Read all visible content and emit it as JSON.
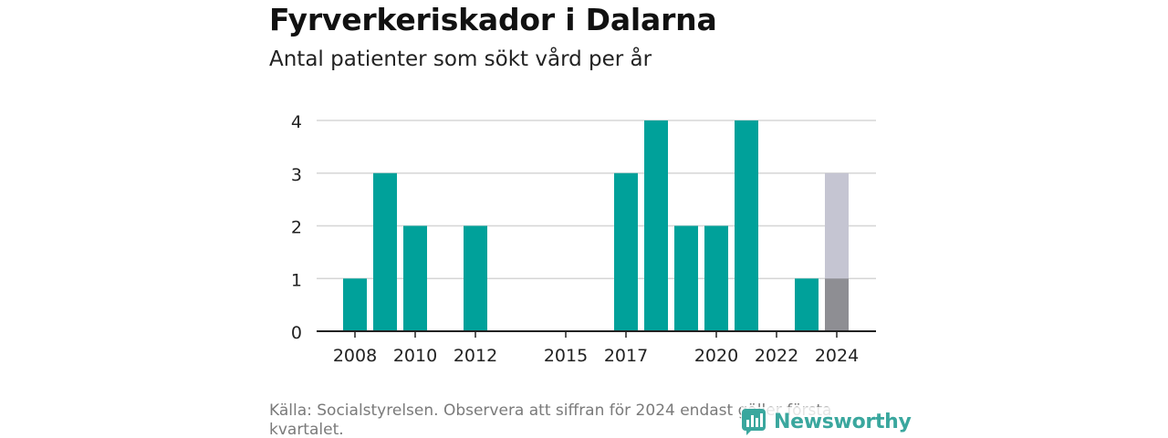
{
  "title": "Fyrverkeriskador i Dalarna",
  "subtitle": "Antal patienter som sökt vård per år",
  "footer": "Källa: Socialstyrelsen. Observera att siffran för 2024 endast gäller första kvartalet.",
  "brand": "Newsworthy",
  "colors": {
    "bar": "#00A19A",
    "highlight": "#8E8E93",
    "projection": "#C5C5D2",
    "grid": "#D6D6D6",
    "axis": "#222222",
    "brand": "#3AA79E"
  },
  "chart_data": {
    "type": "bar",
    "x": [
      2008,
      2009,
      2010,
      2011,
      2012,
      2013,
      2014,
      2015,
      2016,
      2017,
      2018,
      2019,
      2020,
      2021,
      2022,
      2023,
      2024
    ],
    "values": [
      1,
      3,
      2,
      0,
      2,
      0,
      0,
      0,
      0,
      3,
      4,
      2,
      2,
      4,
      0,
      1,
      1
    ],
    "projected": [
      null,
      null,
      null,
      null,
      null,
      null,
      null,
      null,
      null,
      null,
      null,
      null,
      null,
      null,
      null,
      null,
      3
    ],
    "highlighted_x": [
      2024
    ],
    "x_tick_labels": [
      "2008",
      "2010",
      "2012",
      "2015",
      "2017",
      "2020",
      "2022",
      "2024"
    ],
    "y_ticks": [
      0,
      1,
      2,
      3,
      4
    ],
    "ylim": [
      0,
      4
    ],
    "grid": true
  }
}
